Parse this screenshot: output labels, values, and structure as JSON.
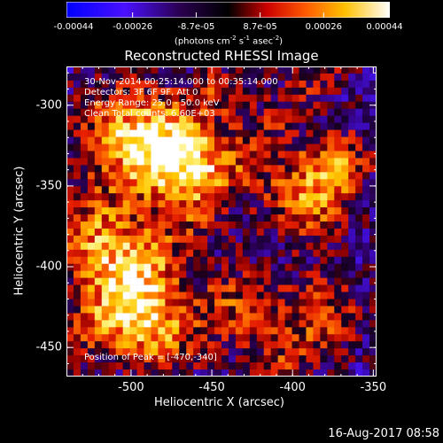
{
  "colorbar": {
    "ticks": [
      {
        "label": "-0.00044",
        "value": -0.00044
      },
      {
        "label": "-0.00026",
        "value": -0.00026
      },
      {
        "label": "-8.7e-05",
        "value": -8.7e-05
      },
      {
        "label": "8.7e-05",
        "value": 8.7e-05
      },
      {
        "label": "0.00026",
        "value": 0.00026
      },
      {
        "label": "0.00044",
        "value": 0.00044
      }
    ],
    "range": [
      -0.00044,
      0.00044
    ],
    "units_text": "(photons cm-2 s-1 asec-2)",
    "colors": [
      "#0000ff",
      "#5a00ff",
      "#000000",
      "#ff0000",
      "#ff8000",
      "#ffff00",
      "#ffffff"
    ]
  },
  "chart_data": {
    "type": "heatmap",
    "title": "Reconstructed RHESSI Image",
    "xlabel": "Heliocentric X (arcsec)",
    "ylabel": "Heliocentric Y (arcsec)",
    "xlim": [
      -540,
      -348
    ],
    "ylim": [
      -468,
      -276
    ],
    "xticks": [
      {
        "label": "-500",
        "value": -500
      },
      {
        "label": "-450",
        "value": -450
      },
      {
        "label": "-400",
        "value": -400
      },
      {
        "label": "-350",
        "value": -350
      }
    ],
    "yticks": [
      {
        "label": "-300",
        "value": -300
      },
      {
        "label": "-350",
        "value": -350
      },
      {
        "label": "-400",
        "value": -400
      },
      {
        "label": "-450",
        "value": -450
      }
    ],
    "annotations": [
      "30-Nov-2014 00:25:14.000 to 00:35:14.000",
      "Detectors: 3F 6F 9F, Att 0",
      "Energy Range: 25.0 - 50.0 keV",
      "Clean    Total counts: 6.60E+03"
    ],
    "peak_label": "Position of Peak = [-470,-340]",
    "peak_position": [
      -470,
      -340
    ]
  },
  "footer": {
    "timestamp": "16-Aug-2017 08:58"
  }
}
